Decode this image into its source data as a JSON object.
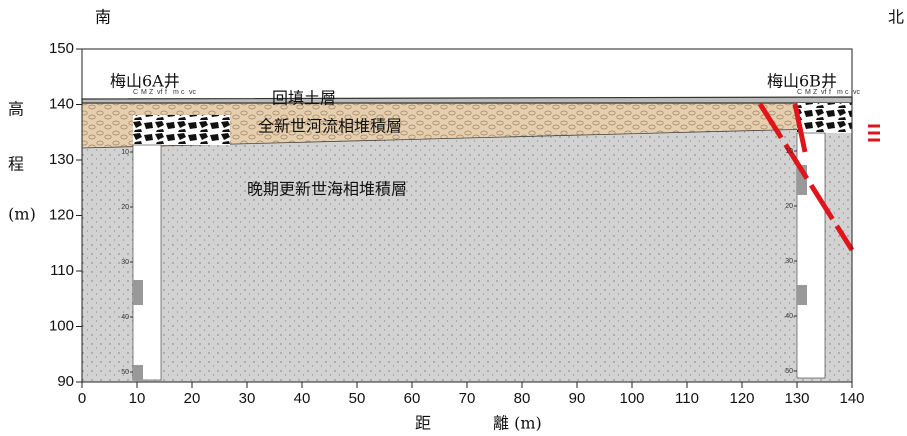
{
  "chart_data": {
    "type": "cross-section",
    "left_label": "南",
    "right_label": "北",
    "y_label": [
      "高",
      "程",
      "(m)"
    ],
    "x_label": [
      "距",
      "離 (m)"
    ],
    "xlim": [
      0,
      140
    ],
    "xticks": [
      0,
      10,
      20,
      30,
      40,
      50,
      60,
      70,
      80,
      90,
      100,
      110,
      120,
      130,
      140
    ],
    "ylim": [
      90,
      150
    ],
    "yticks": [
      90,
      100,
      110,
      120,
      130,
      140,
      150
    ],
    "layers": [
      "回填土層",
      "全新世河流相堆積層",
      "晚期更新世海相堆積層"
    ],
    "wells": [
      {
        "name": "梅山6A井",
        "depth_labels": [
          10,
          20,
          30,
          40,
          50
        ]
      },
      {
        "name": "梅山6B井",
        "depth_labels": [
          10,
          20,
          30,
          40,
          50
        ]
      }
    ],
    "grain_scale": [
      "C",
      "M",
      "Z",
      "vf",
      "f",
      "m",
      "c",
      "vc"
    ]
  }
}
